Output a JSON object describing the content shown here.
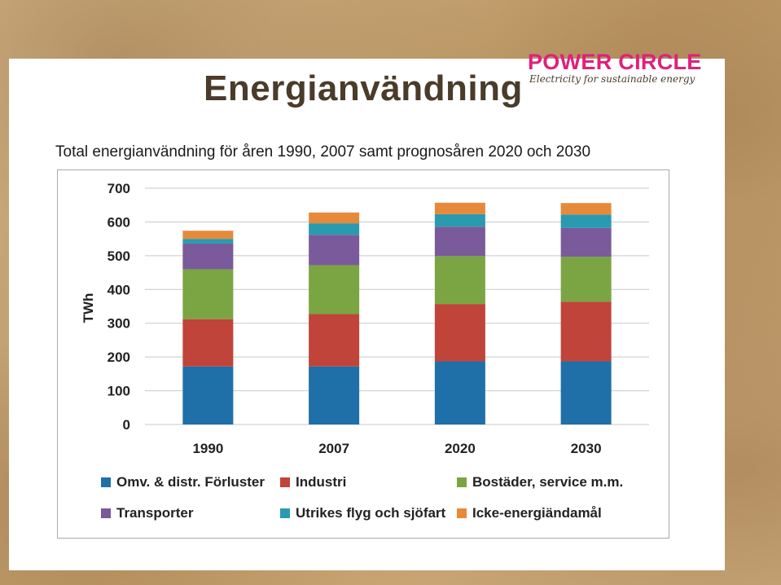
{
  "slide": {
    "title": "Energianvändning",
    "logo_name": "POWER CIRCLE",
    "logo_tagline": "Electricity for sustainable energy"
  },
  "colors": {
    "omv": "#1f6fa8",
    "industri": "#c0443a",
    "bostader": "#7aa542",
    "transporter": "#7a5a9a",
    "utrikes": "#2a9ab0",
    "icke": "#e68a3a",
    "brand": "#e0207a"
  },
  "chart_data": {
    "type": "bar",
    "stacked": true,
    "title": "Total energianvändning för åren 1990, 2007 samt prognosåren 2020 och 2030",
    "xlabel": "",
    "ylabel": "TWh",
    "ylim": [
      0,
      700
    ],
    "yticks": [
      0,
      100,
      200,
      300,
      400,
      500,
      600,
      700
    ],
    "grid": true,
    "legend_position": "bottom",
    "categories": [
      "1990",
      "2007",
      "2020",
      "2030"
    ],
    "series": [
      {
        "name": "Omv. & distr. Förluster",
        "values": [
          172,
          172,
          187,
          187
        ]
      },
      {
        "name": "Industri",
        "values": [
          140,
          155,
          170,
          177
        ]
      },
      {
        "name": "Bostäder, service m.m.",
        "values": [
          148,
          145,
          142,
          133
        ]
      },
      {
        "name": "Transporter",
        "values": [
          76,
          90,
          87,
          85
        ]
      },
      {
        "name": "Utrikes flyg och sjöfart",
        "values": [
          14,
          34,
          37,
          40
        ]
      },
      {
        "name": "Icke-energiändamål",
        "values": [
          24,
          32,
          34,
          34
        ]
      }
    ]
  }
}
